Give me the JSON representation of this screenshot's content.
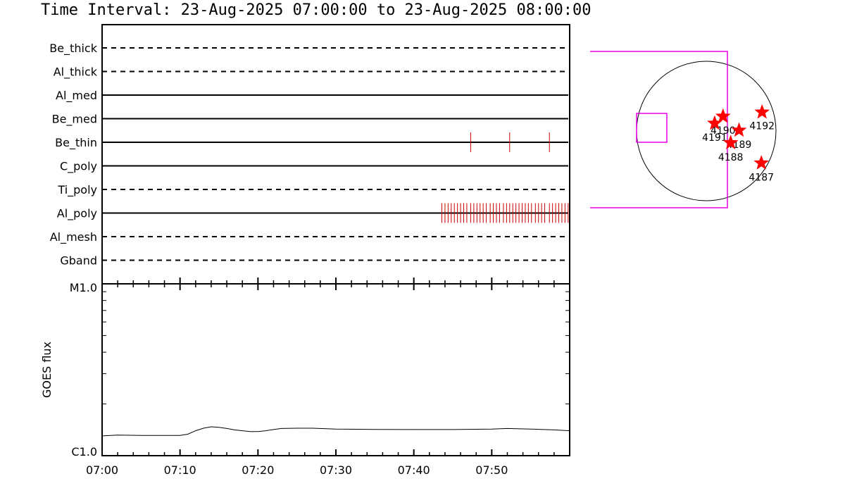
{
  "title": "Time Interval: 23-Aug-2025 07:00:00 to 23-Aug-2025 08:00:00",
  "chart_data": [
    {
      "type": "timeline",
      "x_range_minutes": [
        0,
        60
      ],
      "rows": [
        {
          "name": "Be_thick",
          "style": "dashed",
          "events": []
        },
        {
          "name": "Al_thick",
          "style": "dashed",
          "events": []
        },
        {
          "name": "Al_med",
          "style": "solid",
          "events": []
        },
        {
          "name": "Be_med",
          "style": "solid",
          "events": []
        },
        {
          "name": "Be_thin",
          "style": "solid",
          "events": [
            47.3,
            52.3,
            57.4
          ]
        },
        {
          "name": "C_poly",
          "style": "solid",
          "events": []
        },
        {
          "name": "Ti_poly",
          "style": "dashed",
          "events": []
        },
        {
          "name": "Al_poly",
          "style": "solid",
          "events": [
            43.6,
            44.0,
            44.4,
            44.8,
            45.2,
            45.6,
            46.0,
            46.4,
            46.8,
            47.3,
            47.7,
            48.1,
            48.5,
            48.9,
            49.3,
            49.8,
            50.2,
            50.6,
            51.0,
            51.5,
            51.9,
            52.3,
            52.7,
            53.1,
            53.5,
            53.9,
            54.3,
            54.7,
            55.1,
            55.6,
            56.0,
            56.4,
            56.8,
            57.4,
            57.8,
            58.2,
            58.6,
            59.0,
            59.4,
            59.8
          ]
        },
        {
          "name": "Al_mesh",
          "style": "dashed",
          "events": []
        },
        {
          "name": "Gband",
          "style": "dashed",
          "events": []
        }
      ],
      "event_color": "#cc0000"
    },
    {
      "type": "line",
      "ylabel": "GOES flux",
      "y_ticks": [
        "M1.0",
        "C1.0"
      ],
      "x_tick_labels": [
        "07:00",
        "07:10",
        "07:20",
        "07:30",
        "07:40",
        "07:50"
      ],
      "x_ticks_minutes": [
        0,
        10,
        20,
        30,
        40,
        50
      ],
      "series": [
        {
          "x": [
            0,
            2,
            5,
            8,
            10,
            11,
            12,
            13,
            14,
            15,
            16,
            17,
            18,
            19,
            20,
            21,
            22,
            23,
            25,
            27,
            30,
            35,
            40,
            45,
            50,
            52,
            55,
            58,
            60
          ],
          "y": [
            0.115,
            0.12,
            0.118,
            0.118,
            0.118,
            0.125,
            0.145,
            0.16,
            0.168,
            0.165,
            0.158,
            0.15,
            0.145,
            0.14,
            0.14,
            0.145,
            0.152,
            0.158,
            0.16,
            0.16,
            0.155,
            0.153,
            0.152,
            0.152,
            0.155,
            0.158,
            0.155,
            0.15,
            0.145
          ]
        }
      ]
    },
    {
      "type": "scatter",
      "description_free": true,
      "points": [
        {
          "label": "4192",
          "x": 0.8,
          "y": 0.27
        },
        {
          "label": "4190",
          "x": 0.24,
          "y": 0.21
        },
        {
          "label": "4191",
          "x": 0.12,
          "y": 0.11
        },
        {
          "label": "4189",
          "x": 0.47,
          "y": 0.01
        },
        {
          "label": "4188",
          "x": 0.35,
          "y": -0.17
        },
        {
          "label": "4187",
          "x": 0.79,
          "y": -0.46
        }
      ],
      "marker_color": "#ff0000",
      "box_color": "#e600e6"
    }
  ]
}
